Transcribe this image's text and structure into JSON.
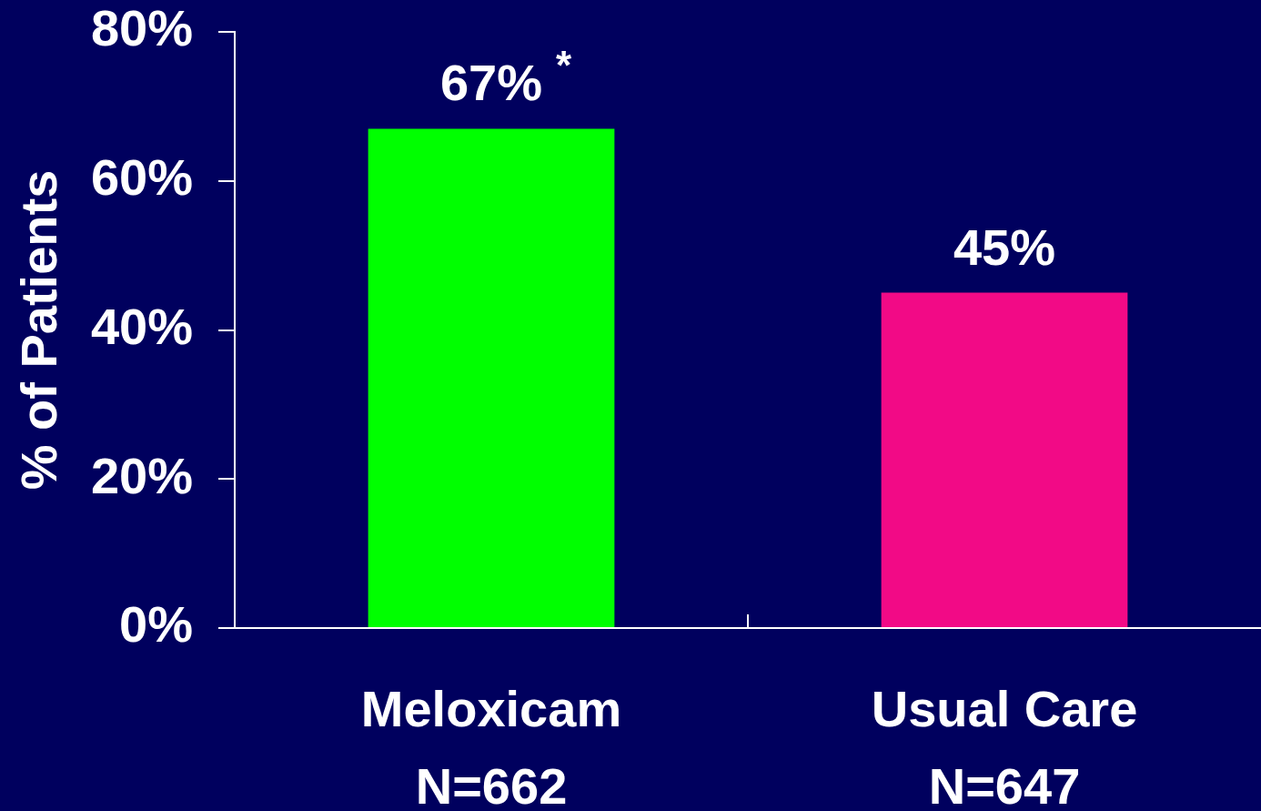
{
  "chart_data": {
    "type": "bar",
    "categories": [
      "Meloxicam\nN=662",
      "Usual Care\nN=647"
    ],
    "values": [
      67,
      45
    ],
    "colors": [
      "#00ff00",
      "#f20a86"
    ],
    "value_labels": [
      "67%",
      "45%"
    ],
    "ylabel": "% of Patients",
    "ylim": [
      0,
      80
    ],
    "yticks": [
      {
        "value": 0,
        "label": "0%"
      },
      {
        "value": 20,
        "label": "20%"
      },
      {
        "value": 40,
        "label": "40%"
      },
      {
        "value": 60,
        "label": "60%"
      },
      {
        "value": 80,
        "label": "80%"
      }
    ],
    "annotations": [
      {
        "text": "*",
        "x": "Meloxicam\nN=662",
        "y": 67
      }
    ]
  }
}
